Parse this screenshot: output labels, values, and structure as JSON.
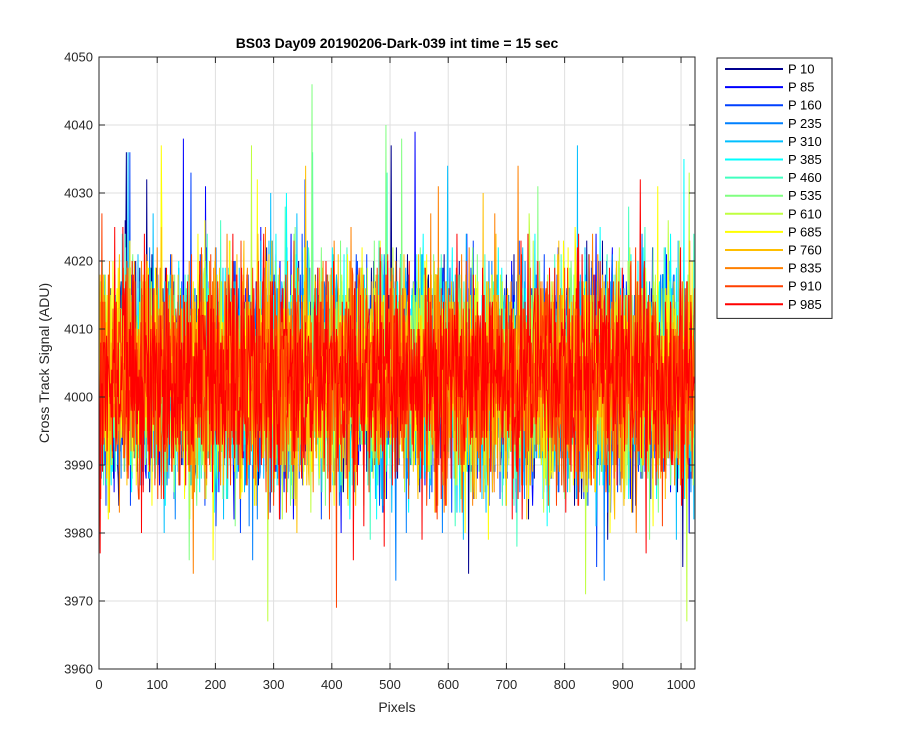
{
  "chart_data": {
    "type": "line",
    "title": "BS03 Day09 20190206-Dark-039 int time = 15 sec",
    "xlabel": "Pixels",
    "ylabel": "Cross Track Signal (ADU)",
    "xlim": [
      0,
      1024
    ],
    "ylim": [
      3960,
      4050
    ],
    "xticks": [
      "0",
      "100",
      "200",
      "300",
      "400",
      "500",
      "600",
      "700",
      "800",
      "900",
      "1000"
    ],
    "yticks": [
      "3960",
      "3970",
      "3980",
      "3990",
      "4000",
      "4010",
      "4020",
      "4030",
      "4040",
      "4050"
    ],
    "grid": true,
    "legend_position": "outside-top-right",
    "series": [
      {
        "name": "P 10",
        "color": "#00008f",
        "mean": 4003,
        "std": 8.0,
        "spikes": [
          [
            47,
            4036
          ],
          [
            82,
            4032
          ],
          [
            502,
            4037
          ],
          [
            635,
            3974
          ],
          [
            1003,
            3975
          ]
        ]
      },
      {
        "name": "P 85",
        "color": "#0000ff",
        "mean": 4003,
        "std": 8.0,
        "spikes": [
          [
            145,
            4038
          ],
          [
            183,
            4031
          ],
          [
            232,
            3982
          ],
          [
            318,
            3986
          ],
          [
            543,
            4039
          ]
        ]
      },
      {
        "name": "P 160",
        "color": "#0040ff",
        "mean": 4003,
        "std": 8.0,
        "spikes": [
          [
            53,
            4036
          ],
          [
            158,
            4033
          ],
          [
            354,
            4032
          ],
          [
            482,
            3984
          ],
          [
            855,
            3975
          ]
        ]
      },
      {
        "name": "P 235",
        "color": "#0080ff",
        "mean": 4003,
        "std": 8.0,
        "spikes": [
          [
            264,
            3976
          ],
          [
            413,
            3984
          ],
          [
            510,
            3973
          ],
          [
            590,
            3980
          ],
          [
            868,
            3973
          ]
        ]
      },
      {
        "name": "P 310",
        "color": "#00bfff",
        "mean": 4003,
        "std": 8.0,
        "spikes": [
          [
            50,
            4036
          ],
          [
            295,
            4030
          ],
          [
            599,
            4034
          ],
          [
            822,
            4037
          ],
          [
            992,
            3979
          ]
        ]
      },
      {
        "name": "P 385",
        "color": "#00ffff",
        "mean": 4003,
        "std": 8.0,
        "spikes": [
          [
            322,
            4030
          ],
          [
            620,
            3983
          ],
          [
            770,
            3981
          ],
          [
            1005,
            4035
          ]
        ]
      },
      {
        "name": "P 460",
        "color": "#40ffbf",
        "mean": 4003,
        "std": 8.0,
        "spikes": [
          [
            367,
            4036
          ],
          [
            495,
            4033
          ],
          [
            718,
            3978
          ],
          [
            910,
            4028
          ]
        ]
      },
      {
        "name": "P 535",
        "color": "#80ff80",
        "mean": 4003,
        "std": 8.0,
        "spikes": [
          [
            366,
            4046
          ],
          [
            493,
            4040
          ],
          [
            520,
            4038
          ],
          [
            155,
            3976
          ],
          [
            754,
            4031
          ]
        ]
      },
      {
        "name": "P 610",
        "color": "#bfff40",
        "mean": 4003,
        "std": 8.0,
        "spikes": [
          [
            290,
            3967
          ],
          [
            262,
            4037
          ],
          [
            1010,
            3967
          ],
          [
            836,
            3971
          ],
          [
            1014,
            4033
          ]
        ]
      },
      {
        "name": "P 685",
        "color": "#ffff00",
        "mean": 4003,
        "std": 8.0,
        "spikes": [
          [
            107,
            4037
          ],
          [
            196,
            3976
          ],
          [
            272,
            4032
          ],
          [
            960,
            4031
          ],
          [
            878,
            3980
          ]
        ]
      },
      {
        "name": "P 760",
        "color": "#ffbf00",
        "mean": 4003,
        "std": 8.0,
        "spikes": [
          [
            355,
            4034
          ],
          [
            548,
            3985
          ],
          [
            660,
            4030
          ],
          [
            915,
            3983
          ],
          [
            340,
            3980
          ]
        ]
      },
      {
        "name": "P 835",
        "color": "#ff8000",
        "mean": 4003,
        "std": 8.0,
        "spikes": [
          [
            162,
            3974
          ],
          [
            720,
            4034
          ],
          [
            583,
            4031
          ],
          [
            35,
            3983
          ]
        ]
      },
      {
        "name": "P 910",
        "color": "#ff4000",
        "mean": 4003,
        "std": 8.0,
        "spikes": [
          [
            408,
            3969
          ],
          [
            5,
            4027
          ],
          [
            655,
            3986
          ],
          [
            300,
            3984
          ]
        ]
      },
      {
        "name": "P 985",
        "color": "#ff0000",
        "mean": 4003,
        "std": 8.0,
        "spikes": [
          [
            2,
            3977
          ],
          [
            437,
            3976
          ],
          [
            490,
            3978
          ],
          [
            930,
            4032
          ],
          [
            940,
            3977
          ]
        ]
      }
    ]
  }
}
